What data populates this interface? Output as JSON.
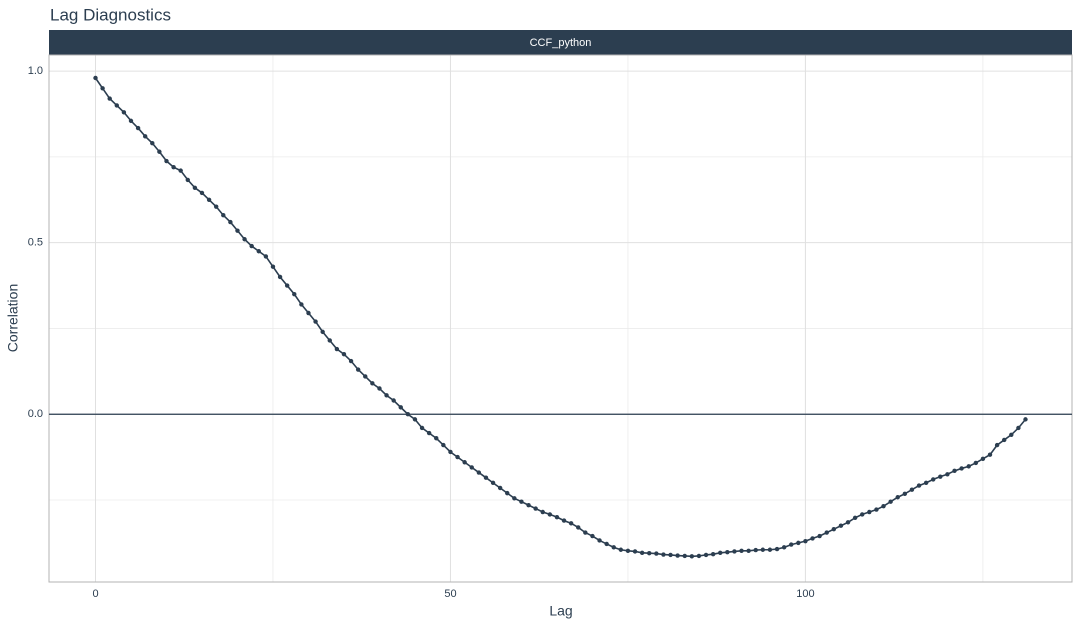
{
  "chart_data": {
    "type": "line",
    "title": "Lag Diagnostics",
    "facet": "CCF_python",
    "xlabel": "Lag",
    "ylabel": "Correlation",
    "color": "#2c3e50",
    "x": [
      0,
      1,
      2,
      3,
      4,
      5,
      6,
      7,
      8,
      9,
      10,
      11,
      12,
      13,
      14,
      15,
      16,
      17,
      18,
      19,
      20,
      21,
      22,
      23,
      24,
      25,
      26,
      27,
      28,
      29,
      30,
      31,
      32,
      33,
      34,
      35,
      36,
      37,
      38,
      39,
      40,
      41,
      42,
      43,
      44,
      45,
      46,
      47,
      48,
      49,
      50,
      51,
      52,
      53,
      54,
      55,
      56,
      57,
      58,
      59,
      60,
      61,
      62,
      63,
      64,
      65,
      66,
      67,
      68,
      69,
      70,
      71,
      72,
      73,
      74,
      75,
      76,
      77,
      78,
      79,
      80,
      81,
      82,
      83,
      84,
      85,
      86,
      87,
      88,
      89,
      90,
      91,
      92,
      93,
      94,
      95,
      96,
      97,
      98,
      99,
      100,
      101,
      102,
      103,
      104,
      105,
      106,
      107,
      108,
      109,
      110,
      111,
      112,
      113,
      114,
      115,
      116,
      117,
      118,
      119,
      120,
      121,
      122,
      123,
      124,
      125,
      126,
      127,
      128,
      129,
      130,
      131
    ],
    "values": [
      0.98,
      0.95,
      0.92,
      0.9,
      0.88,
      0.855,
      0.834,
      0.81,
      0.79,
      0.765,
      0.738,
      0.72,
      0.71,
      0.683,
      0.66,
      0.645,
      0.625,
      0.605,
      0.58,
      0.56,
      0.535,
      0.51,
      0.49,
      0.475,
      0.46,
      0.43,
      0.4,
      0.375,
      0.35,
      0.32,
      0.295,
      0.27,
      0.24,
      0.215,
      0.19,
      0.175,
      0.155,
      0.13,
      0.11,
      0.09,
      0.075,
      0.055,
      0.04,
      0.02,
      0.0,
      -0.015,
      -0.04,
      -0.055,
      -0.07,
      -0.09,
      -0.11,
      -0.125,
      -0.14,
      -0.155,
      -0.17,
      -0.185,
      -0.2,
      -0.215,
      -0.23,
      -0.245,
      -0.255,
      -0.265,
      -0.275,
      -0.285,
      -0.292,
      -0.3,
      -0.31,
      -0.318,
      -0.33,
      -0.345,
      -0.355,
      -0.368,
      -0.378,
      -0.388,
      -0.395,
      -0.398,
      -0.4,
      -0.404,
      -0.405,
      -0.406,
      -0.409,
      -0.41,
      -0.412,
      -0.413,
      -0.414,
      -0.413,
      -0.41,
      -0.408,
      -0.404,
      -0.402,
      -0.4,
      -0.398,
      -0.398,
      -0.396,
      -0.395,
      -0.395,
      -0.393,
      -0.388,
      -0.38,
      -0.375,
      -0.37,
      -0.362,
      -0.355,
      -0.345,
      -0.335,
      -0.325,
      -0.315,
      -0.302,
      -0.292,
      -0.285,
      -0.278,
      -0.268,
      -0.255,
      -0.242,
      -0.232,
      -0.22,
      -0.208,
      -0.2,
      -0.19,
      -0.182,
      -0.175,
      -0.165,
      -0.158,
      -0.152,
      -0.142,
      -0.13,
      -0.118,
      -0.09,
      -0.075,
      -0.06,
      -0.04,
      -0.015
    ],
    "xlim": [
      -6.55,
      137.55
    ],
    "ylim": [
      -0.489,
      1.047
    ],
    "xticks": [
      0,
      50,
      100
    ],
    "yticks": [
      {
        "value": 0,
        "label": "0.0"
      },
      0.5,
      {
        "value": 1,
        "label": "1.0"
      }
    ],
    "xminor": [
      25,
      75,
      125
    ],
    "yminor": [
      -0.25,
      0.25,
      0.75
    ],
    "hline": 0,
    "grid": true
  }
}
